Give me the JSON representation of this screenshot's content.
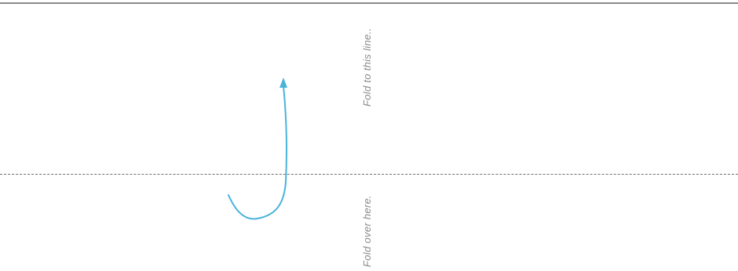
{
  "labels": {
    "fold_to": "Fold to this line..",
    "fold_over": "Fold over here."
  },
  "colors": {
    "arrow": "#4ab3dc",
    "line": "#8a8a8a",
    "text": "#8a8a8a"
  }
}
